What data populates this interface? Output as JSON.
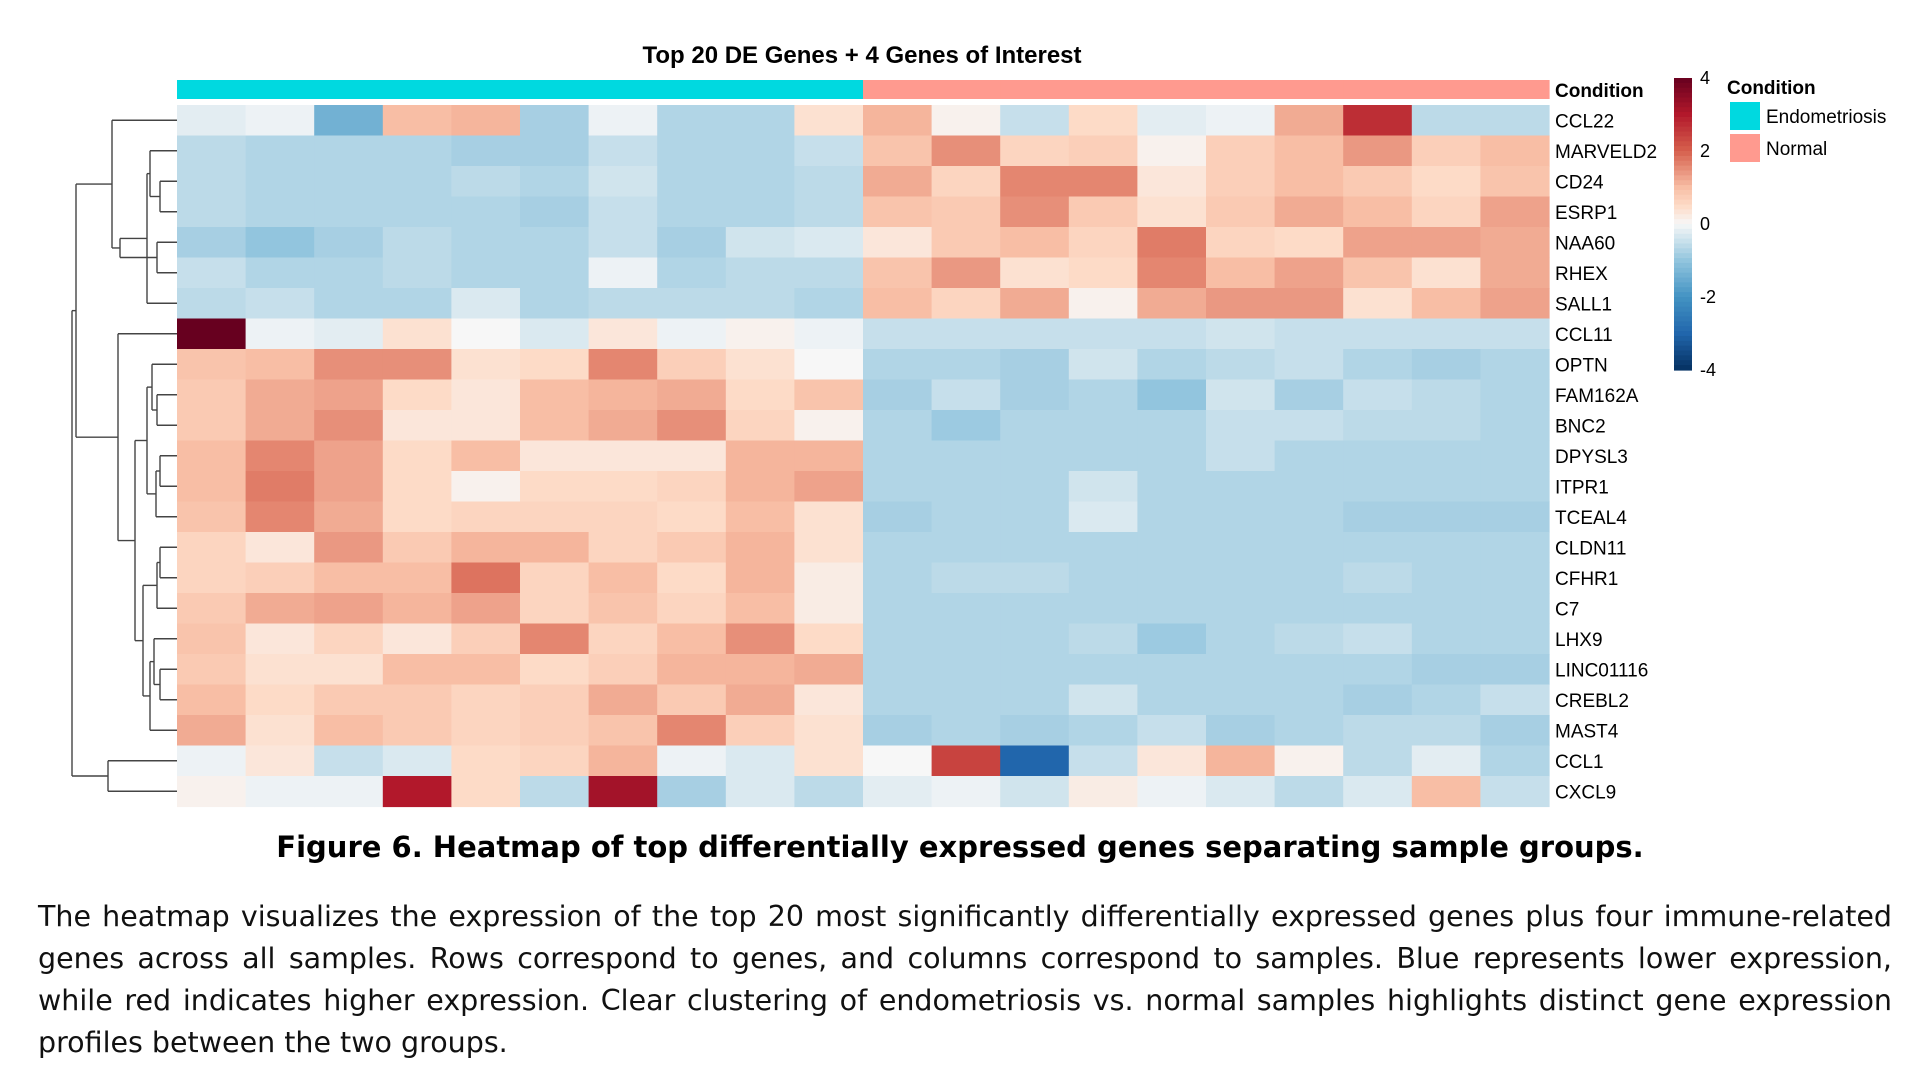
{
  "figure": {
    "caption": "Figure 6. Heatmap of top differentially expressed genes separating sample groups.",
    "description": "The heatmap visualizes the expression of the top 20 most significantly differentially expressed genes plus four immune-related genes across all samples. Rows correspond to genes, and columns correspond to samples. Blue represents lower expression, while red indicates higher expression. Clear clustering of endometriosis vs. normal samples highlights distinct gene expression profiles between the two groups."
  },
  "chart_data": {
    "type": "heatmap",
    "title": "Top 20 DE Genes + 4 Genes of Interest",
    "annotation_label": "Condition",
    "genes": [
      "CCL22",
      "MARVELD2",
      "CD24",
      "ESRP1",
      "NAA60",
      "RHEX",
      "SALL1",
      "CCL11",
      "OPTN",
      "FAM162A",
      "BNC2",
      "DPYSL3",
      "ITPR1",
      "TCEAL4",
      "CLDN11",
      "CFHR1",
      "C7",
      "LHX9",
      "LINC01116",
      "CREBL2",
      "MAST4",
      "CCL1",
      "CXCL9"
    ],
    "conditions": [
      "Endometriosis",
      "Endometriosis",
      "Endometriosis",
      "Endometriosis",
      "Endometriosis",
      "Endometriosis",
      "Endometriosis",
      "Endometriosis",
      "Endometriosis",
      "Endometriosis",
      "Normal",
      "Normal",
      "Normal",
      "Normal",
      "Normal",
      "Normal",
      "Normal",
      "Normal",
      "Normal",
      "Normal"
    ],
    "values": [
      [
        -0.2,
        -0.1,
        -1.4,
        1.0,
        1.1,
        -0.8,
        -0.1,
        -0.7,
        -0.7,
        0.4,
        1.1,
        0.1,
        -0.5,
        0.5,
        -0.2,
        -0.1,
        1.2,
        2.7,
        -0.6,
        -0.6
      ],
      [
        -0.6,
        -0.7,
        -0.7,
        -0.7,
        -0.8,
        -0.8,
        -0.5,
        -0.7,
        -0.7,
        -0.5,
        0.9,
        1.5,
        0.6,
        0.7,
        0.1,
        0.7,
        1.0,
        1.4,
        0.7,
        1.0
      ],
      [
        -0.6,
        -0.7,
        -0.7,
        -0.7,
        -0.6,
        -0.7,
        -0.4,
        -0.7,
        -0.7,
        -0.6,
        1.2,
        0.6,
        1.6,
        1.6,
        0.3,
        0.7,
        1.0,
        0.8,
        0.5,
        0.9
      ],
      [
        -0.6,
        -0.7,
        -0.7,
        -0.7,
        -0.7,
        -0.8,
        -0.5,
        -0.7,
        -0.7,
        -0.6,
        0.9,
        0.8,
        1.5,
        0.8,
        0.4,
        0.8,
        1.2,
        1.0,
        0.6,
        1.3
      ],
      [
        -0.8,
        -1.0,
        -0.8,
        -0.6,
        -0.7,
        -0.7,
        -0.5,
        -0.8,
        -0.4,
        -0.3,
        0.3,
        0.8,
        1.0,
        0.6,
        1.7,
        0.6,
        0.5,
        1.3,
        1.3,
        1.2
      ],
      [
        -0.5,
        -0.7,
        -0.7,
        -0.6,
        -0.7,
        -0.7,
        -0.1,
        -0.7,
        -0.6,
        -0.6,
        0.9,
        1.4,
        0.4,
        0.5,
        1.6,
        1.0,
        1.3,
        0.9,
        0.4,
        1.2
      ],
      [
        -0.6,
        -0.5,
        -0.7,
        -0.7,
        -0.3,
        -0.7,
        -0.6,
        -0.6,
        -0.6,
        -0.7,
        1.0,
        0.6,
        1.2,
        0.1,
        1.2,
        1.4,
        1.4,
        0.4,
        1.0,
        1.3
      ],
      [
        4.0,
        -0.1,
        -0.2,
        0.4,
        0.0,
        -0.3,
        0.3,
        -0.1,
        0.1,
        -0.1,
        -0.5,
        -0.5,
        -0.5,
        -0.5,
        -0.5,
        -0.4,
        -0.5,
        -0.5,
        -0.5,
        -0.5
      ],
      [
        0.9,
        1.0,
        1.5,
        1.5,
        0.4,
        0.5,
        1.6,
        0.7,
        0.4,
        0.0,
        -0.7,
        -0.7,
        -0.8,
        -0.4,
        -0.7,
        -0.6,
        -0.5,
        -0.7,
        -0.8,
        -0.7
      ],
      [
        0.8,
        1.2,
        1.3,
        0.5,
        0.3,
        1.0,
        1.1,
        1.2,
        0.5,
        0.9,
        -0.8,
        -0.5,
        -0.8,
        -0.7,
        -1.0,
        -0.4,
        -0.8,
        -0.5,
        -0.6,
        -0.7
      ],
      [
        0.8,
        1.2,
        1.5,
        0.3,
        0.3,
        1.0,
        1.2,
        1.5,
        0.6,
        0.1,
        -0.7,
        -0.9,
        -0.7,
        -0.7,
        -0.7,
        -0.5,
        -0.5,
        -0.6,
        -0.6,
        -0.7
      ],
      [
        1.0,
        1.6,
        1.3,
        0.5,
        1.0,
        0.3,
        0.3,
        0.3,
        1.1,
        1.1,
        -0.7,
        -0.7,
        -0.7,
        -0.7,
        -0.7,
        -0.5,
        -0.7,
        -0.7,
        -0.7,
        -0.7
      ],
      [
        1.0,
        1.7,
        1.3,
        0.5,
        0.1,
        0.5,
        0.5,
        0.6,
        1.1,
        1.3,
        -0.7,
        -0.7,
        -0.7,
        -0.4,
        -0.7,
        -0.7,
        -0.7,
        -0.7,
        -0.7,
        -0.7
      ],
      [
        0.9,
        1.6,
        1.2,
        0.5,
        0.6,
        0.6,
        0.6,
        0.5,
        1.0,
        0.4,
        -0.8,
        -0.7,
        -0.7,
        -0.3,
        -0.7,
        -0.7,
        -0.7,
        -0.8,
        -0.8,
        -0.8
      ],
      [
        0.6,
        0.3,
        1.4,
        0.8,
        1.1,
        1.1,
        0.6,
        0.8,
        1.1,
        0.4,
        -0.7,
        -0.7,
        -0.7,
        -0.7,
        -0.7,
        -0.7,
        -0.7,
        -0.7,
        -0.7,
        -0.7
      ],
      [
        0.6,
        0.7,
        1.0,
        1.0,
        1.8,
        0.6,
        1.0,
        0.5,
        1.1,
        0.2,
        -0.7,
        -0.6,
        -0.6,
        -0.7,
        -0.7,
        -0.7,
        -0.7,
        -0.6,
        -0.7,
        -0.7
      ],
      [
        0.8,
        1.2,
        1.3,
        1.1,
        1.3,
        0.6,
        0.9,
        0.6,
        1.0,
        0.2,
        -0.7,
        -0.7,
        -0.7,
        -0.7,
        -0.7,
        -0.7,
        -0.7,
        -0.7,
        -0.7,
        -0.7
      ],
      [
        0.9,
        0.3,
        0.6,
        0.3,
        0.7,
        1.6,
        0.6,
        1.0,
        1.5,
        0.5,
        -0.7,
        -0.7,
        -0.7,
        -0.6,
        -0.9,
        -0.7,
        -0.6,
        -0.5,
        -0.7,
        -0.7
      ],
      [
        0.8,
        0.4,
        0.4,
        1.0,
        1.0,
        0.5,
        0.7,
        1.1,
        1.1,
        1.2,
        -0.7,
        -0.7,
        -0.7,
        -0.7,
        -0.7,
        -0.7,
        -0.7,
        -0.7,
        -0.8,
        -0.8
      ],
      [
        1.0,
        0.5,
        0.8,
        0.8,
        0.6,
        0.7,
        1.2,
        0.8,
        1.2,
        0.3,
        -0.7,
        -0.7,
        -0.7,
        -0.4,
        -0.7,
        -0.7,
        -0.7,
        -0.8,
        -0.7,
        -0.5
      ],
      [
        1.2,
        0.4,
        1.0,
        0.8,
        0.6,
        0.7,
        0.9,
        1.6,
        0.7,
        0.4,
        -0.8,
        -0.7,
        -0.8,
        -0.7,
        -0.5,
        -0.8,
        -0.7,
        -0.6,
        -0.6,
        -0.8
      ],
      [
        -0.1,
        0.3,
        -0.5,
        -0.3,
        0.5,
        0.6,
        1.1,
        -0.1,
        -0.3,
        0.4,
        0.0,
        2.4,
        -3.0,
        -0.5,
        0.3,
        1.1,
        0.1,
        -0.6,
        -0.2,
        -0.7
      ],
      [
        0.1,
        -0.1,
        -0.1,
        3.0,
        0.5,
        -0.6,
        3.2,
        -0.8,
        -0.3,
        -0.6,
        -0.2,
        -0.1,
        -0.4,
        0.2,
        -0.1,
        -0.3,
        -0.6,
        -0.3,
        1.0,
        -0.5
      ]
    ],
    "scale": {
      "min": -4,
      "max": 4,
      "ticks": [
        4,
        2,
        0,
        -2,
        -4
      ]
    },
    "colors": {
      "low": "#2166ac",
      "mid": "#f7f7f7",
      "high": "#67001f",
      "endometriosis": "#00d9e0",
      "normal": "#ff9a8f"
    },
    "legend": {
      "title": "Condition",
      "entries": [
        "Endometriosis",
        "Normal"
      ]
    }
  }
}
